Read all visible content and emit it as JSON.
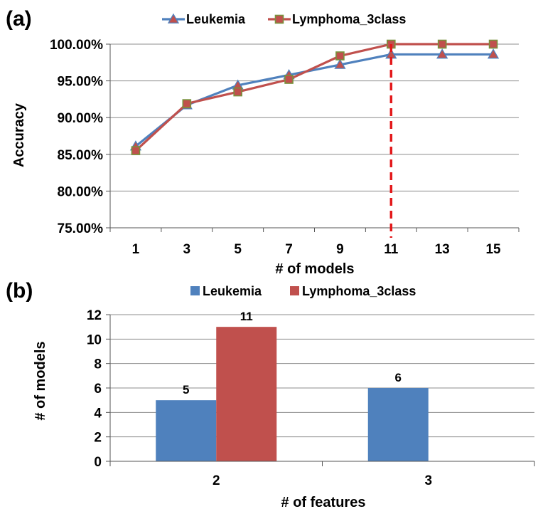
{
  "chart_data": [
    {
      "panel": "(a)",
      "type": "line",
      "x": [
        1,
        3,
        5,
        7,
        9,
        11,
        13,
        15
      ],
      "xlabel": "# of models",
      "ylabel": "Accuracy",
      "ylim": [
        75,
        100
      ],
      "yticks": [
        "75.00%",
        "80.00%",
        "85.00%",
        "90.00%",
        "95.00%",
        "100.00%"
      ],
      "grid": "horizontal",
      "legend": "top",
      "annotation": {
        "type": "vertical-dashed-line",
        "x": 11,
        "color": "#e31a1c"
      },
      "series": [
        {
          "name": "Leukemia",
          "color": "#4f81bd",
          "marker": "triangle",
          "values": [
            86.1,
            91.7,
            94.4,
            95.8,
            97.2,
            98.6,
            98.6,
            98.6
          ]
        },
        {
          "name": "Lymphoma_3class",
          "color": "#c0504d",
          "marker": "square",
          "values": [
            85.5,
            91.9,
            93.5,
            95.2,
            98.4,
            100,
            100,
            100
          ]
        }
      ]
    },
    {
      "panel": "(b)",
      "type": "bar",
      "categories": [
        "2",
        "3"
      ],
      "xlabel": "# of features",
      "ylabel": "# of models",
      "ylim": [
        0,
        12
      ],
      "yticks": [
        "0",
        "2",
        "4",
        "6",
        "8",
        "10",
        "12"
      ],
      "grid": "horizontal",
      "legend": "top",
      "series": [
        {
          "name": "Leukemia",
          "color": "#4f81bd",
          "values": [
            5,
            6
          ],
          "labels": [
            "5",
            "6"
          ]
        },
        {
          "name": "Lymphoma_3class",
          "color": "#c0504d",
          "values": [
            11,
            null
          ],
          "labels": [
            "11",
            ""
          ]
        }
      ]
    }
  ]
}
